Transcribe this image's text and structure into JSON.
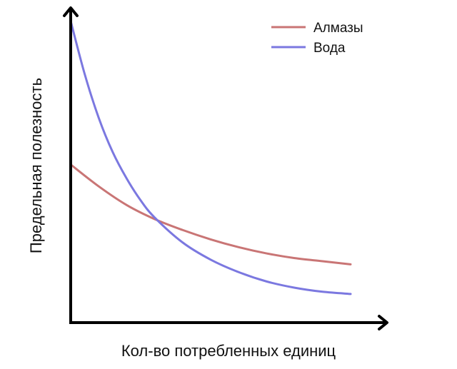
{
  "chart_data": {
    "type": "line",
    "title": "",
    "xlabel": "Кол-во потребленных единиц",
    "ylabel": "Предельная полезность",
    "xlim": [
      0,
      10
    ],
    "ylim": [
      0,
      10
    ],
    "grid": false,
    "legend_position": "top-right",
    "ticks_shown": false,
    "series": [
      {
        "name": "Алмазы",
        "color": "#c97575",
        "x": [
          0,
          1,
          2,
          3,
          4,
          5,
          6,
          7,
          8,
          9,
          10
        ],
        "y": [
          5.0,
          4.3,
          3.7,
          3.25,
          2.9,
          2.6,
          2.35,
          2.15,
          2.0,
          1.9,
          1.8
        ]
      },
      {
        "name": "Вода",
        "color": "#7b78e0",
        "x": [
          0,
          0.5,
          1,
          1.5,
          2,
          2.5,
          3,
          4,
          5,
          6,
          7,
          8,
          9,
          10
        ],
        "y": [
          9.6,
          7.9,
          6.5,
          5.4,
          4.55,
          3.85,
          3.3,
          2.5,
          1.95,
          1.55,
          1.25,
          1.05,
          0.92,
          0.85
        ]
      }
    ]
  },
  "axis_color": "#000000",
  "legend_icon": "line-swatch"
}
